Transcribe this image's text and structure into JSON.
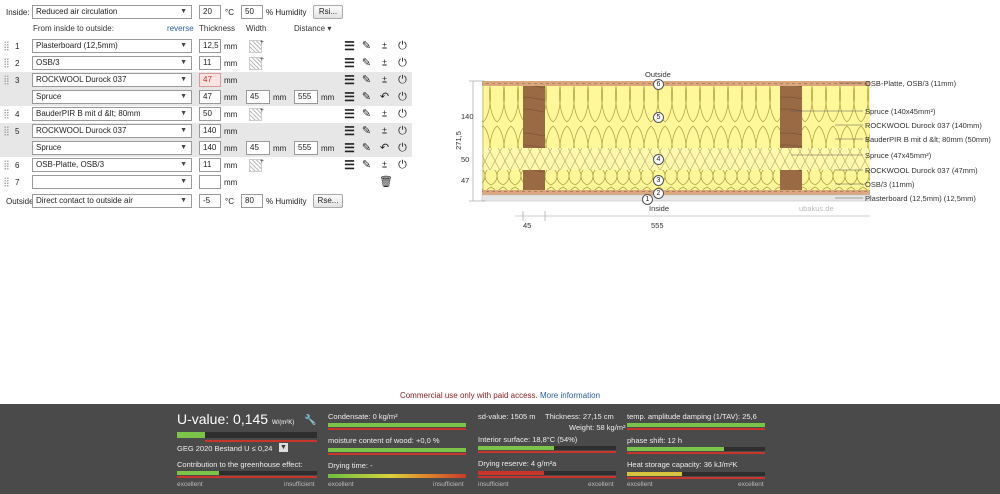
{
  "inside": {
    "label": "Inside:",
    "climate": "Reduced air circulation",
    "temperature": "20",
    "temp_unit": "°C",
    "humidity": "50",
    "humidity_unit": "% Humidity",
    "rsi_button": "Rsi..."
  },
  "column_headers": {
    "from_inside": "From inside to outside:",
    "reverse": "reverse",
    "thickness": "Thickness",
    "width": "Width",
    "distance": "Distance ▾"
  },
  "layers": [
    {
      "index": "1",
      "material": "Plasterboard (12,5mm)",
      "thickness": "12,5",
      "unit": "mm"
    },
    {
      "index": "2",
      "material": "OSB/3",
      "thickness": "11",
      "unit": "mm"
    },
    {
      "index": "3",
      "material": "ROCKWOOL Durock 037",
      "thickness": "47",
      "unit": "mm",
      "sub": {
        "material": "Spruce",
        "thickness": "47",
        "width": "45",
        "distance": "555",
        "unit": "mm"
      }
    },
    {
      "index": "4",
      "material": "BauderPIR B mit d &lt; 80mm",
      "thickness": "50",
      "unit": "mm"
    },
    {
      "index": "5",
      "material": "ROCKWOOL Durock 037",
      "thickness": "140",
      "unit": "mm",
      "sub": {
        "material": "Spruce",
        "thickness": "140",
        "width": "45",
        "distance": "555",
        "unit": "mm"
      }
    },
    {
      "index": "6",
      "material": "OSB-Platte, OSB/3",
      "thickness": "11",
      "unit": "mm"
    },
    {
      "index": "7",
      "material": "",
      "thickness": "",
      "unit": "mm"
    }
  ],
  "outside": {
    "label": "Outside",
    "climate": "Direct contact to outside air",
    "temperature": "-5",
    "temp_unit": "°C",
    "humidity": "80",
    "humidity_unit": "% Humidity",
    "rse_button": "Rse..."
  },
  "section": {
    "outside_label": "Outside",
    "inside_label": "Inside",
    "watermark": "ubakus.de",
    "total_thickness": "271,5",
    "dim_140": "140",
    "dim_50": "50",
    "dim_47": "47",
    "dim_width": "45",
    "dim_distance": "555",
    "callouts": [
      "OSB-Platte, OSB/3 (11mm)",
      "Spruce (140x45mm²)",
      "ROCKWOOL Durock 037 (140mm)",
      "BauderPIR B mit d &lt; 80mm (50mm)",
      "Spruce (47x45mm²)",
      "ROCKWOOL Durock 037 (47mm)",
      "OSB/3 (11mm)",
      "Plasterboard (12,5mm) (12,5mm)"
    ],
    "layer_numbers": [
      "1",
      "2",
      "3",
      "4",
      "5",
      "6"
    ]
  },
  "notice": {
    "text": "Commercial use only with paid access.",
    "link": "More information"
  },
  "results": {
    "u_label": "U-value:",
    "u_value": "0,145",
    "u_unit": "W/(m²K)",
    "u_bar_fraction": 0.2,
    "geg": "GEG 2020 Bestand U ≤ 0,24",
    "greenhouse": "Contribution to the greenhouse effect:",
    "condensate": "Condensate: 0 kg/m²",
    "moisture": "moisture content of wood: +0,0 %",
    "drying_time": "Drying time: -",
    "sd_value": "sd-value: 1505 m",
    "thickness": "Thickness: 27,15 cm",
    "weight": "Weight: 58 kg/m²",
    "interior_surface": "Interior surface: 18,8°C (54%)",
    "drying_reserve": "Drying reserve: 4 g/m²a",
    "temp_damping": "temp. amplitude damping (1/TAV): 25,6",
    "phase_shift": "phase shift: 12 h",
    "heat_storage": "Heat storage capacity: 36 kJ/m²K",
    "excellent": "excellent",
    "insufficient": "insufficient",
    "accent_green": "#7cc34a",
    "accent_red": "#c9352a"
  }
}
